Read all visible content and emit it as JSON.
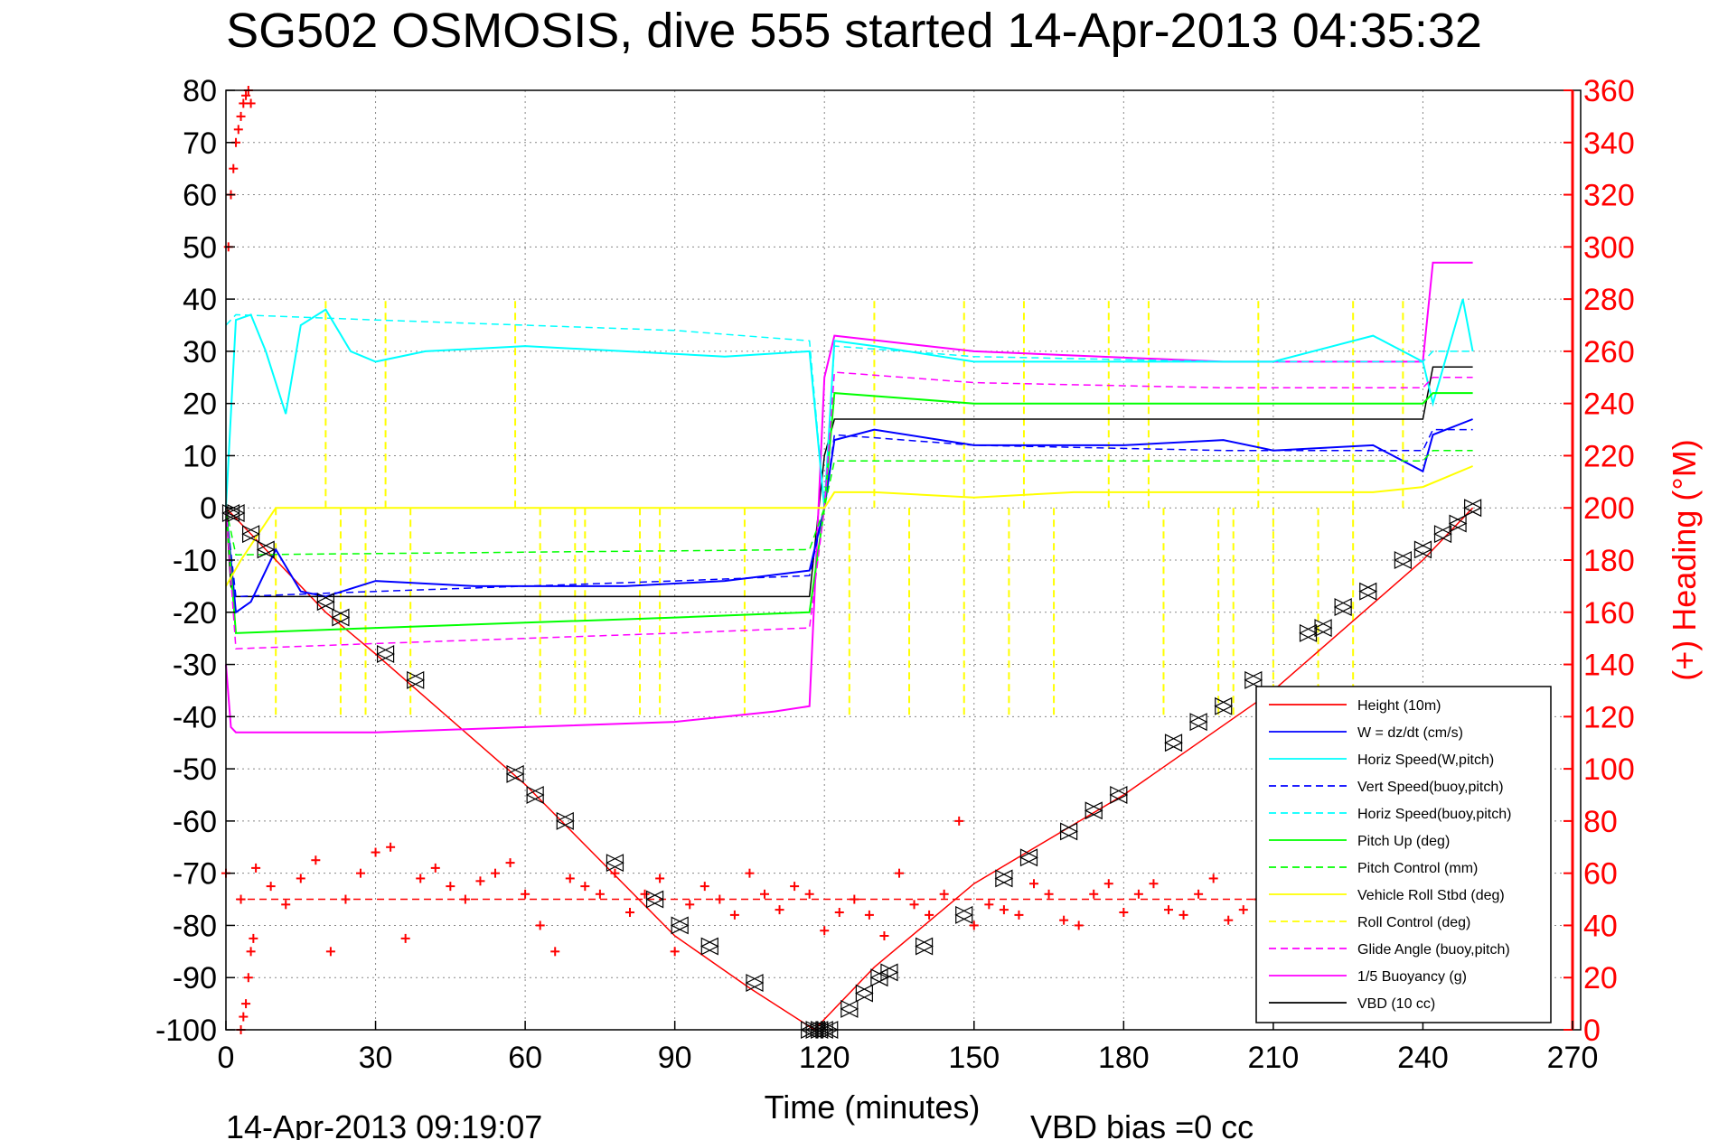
{
  "chart_data": {
    "type": "line",
    "title": "SG502 OSMOSIS, dive 555 started 14-Apr-2013 04:35:32",
    "xlabel": "Time (minutes)",
    "ylabel_right": "(+) Heading (°M)",
    "footer_left": "14-Apr-2013 09:19:07",
    "footer_right": "VBD bias =0 cc",
    "xlim": [
      0,
      270
    ],
    "ylim": [
      -100,
      80
    ],
    "ylim_right": [
      0,
      360
    ],
    "x_ticks": [
      0,
      30,
      60,
      90,
      120,
      150,
      180,
      210,
      240,
      270
    ],
    "y_ticks": [
      80,
      70,
      60,
      50,
      40,
      30,
      20,
      10,
      0,
      -10,
      -20,
      -30,
      -40,
      -50,
      -60,
      -70,
      -80,
      -90,
      -100
    ],
    "y_ticks_right": [
      360,
      340,
      320,
      300,
      280,
      260,
      240,
      220,
      200,
      180,
      160,
      140,
      120,
      100,
      80,
      60,
      40,
      20,
      0
    ],
    "grid": true,
    "legend_position": "bottom-right",
    "colors": {
      "height": "#ff0000",
      "w": "#0000ff",
      "hspd": "#00ffff",
      "pitch": "#00ff00",
      "roll": "#ffff00",
      "glide": "#ff00ff",
      "buoy": "#ff00ff",
      "vbd": "#000000",
      "heading": "#ff0000",
      "axis_right": "#ff0000"
    },
    "legend": [
      {
        "name": "Height (10m)",
        "color": "#ff0000",
        "dash": false
      },
      {
        "name": "W = dz/dt (cm/s)",
        "color": "#0000ff",
        "dash": false
      },
      {
        "name": "Horiz Speed(W,pitch)",
        "color": "#00ffff",
        "dash": false
      },
      {
        "name": "Vert Speed(buoy,pitch)",
        "color": "#0000ff",
        "dash": true
      },
      {
        "name": "Horiz Speed(buoy,pitch)",
        "color": "#00ffff",
        "dash": true
      },
      {
        "name": "Pitch Up (deg)",
        "color": "#00ff00",
        "dash": false
      },
      {
        "name": "Pitch Control (mm)",
        "color": "#00ff00",
        "dash": true
      },
      {
        "name": "Vehicle Roll Stbd (deg)",
        "color": "#ffff00",
        "dash": false
      },
      {
        "name": "Roll Control (deg)",
        "color": "#ffff00",
        "dash": true
      },
      {
        "name": "Glide Angle (buoy,pitch)",
        "color": "#ff00ff",
        "dash": true
      },
      {
        "name": "1/5 Buoyancy (g)",
        "color": "#ff00ff",
        "dash": false
      },
      {
        "name": "VBD (10 cc)",
        "color": "#000000",
        "dash": false
      }
    ],
    "series": [
      {
        "key": "height",
        "x": [
          0,
          2,
          5,
          10,
          20,
          30,
          60,
          90,
          105,
          118,
          120,
          130,
          150,
          180,
          210,
          240,
          250
        ],
        "y": [
          0,
          -2,
          -5,
          -10,
          -20,
          -28,
          -53,
          -82,
          -92,
          -100,
          -98,
          -88,
          -72,
          -55,
          -35,
          -10,
          0
        ]
      },
      {
        "key": "vbd",
        "x": [
          0,
          1,
          2,
          20,
          60,
          100,
          117,
          120,
          122,
          160,
          200,
          240,
          242,
          250
        ],
        "y": [
          0,
          -15,
          -17,
          -17,
          -17,
          -17,
          -17,
          10,
          17,
          17,
          17,
          17,
          27,
          27
        ]
      },
      {
        "key": "buoy",
        "x": [
          0,
          1,
          2,
          30,
          60,
          90,
          110,
          117,
          120,
          122,
          150,
          200,
          240,
          242,
          250
        ],
        "y": [
          -30,
          -42,
          -43,
          -43,
          -42,
          -41,
          -39,
          -38,
          25,
          33,
          30,
          28,
          28,
          47,
          47
        ]
      },
      {
        "key": "hspd_buoy",
        "x": [
          0,
          2,
          30,
          60,
          90,
          117,
          120,
          122,
          150,
          200,
          240,
          242,
          250
        ],
        "y": [
          35,
          37,
          36,
          35,
          34,
          32,
          0,
          31,
          29,
          28,
          28,
          30,
          30
        ]
      },
      {
        "key": "hspd_w",
        "x": [
          0,
          2,
          5,
          8,
          12,
          15,
          20,
          25,
          30,
          40,
          60,
          80,
          100,
          117,
          120,
          122,
          130,
          150,
          180,
          210,
          230,
          240,
          242,
          248,
          250
        ],
        "y": [
          0,
          36,
          37,
          30,
          18,
          35,
          38,
          30,
          28,
          30,
          31,
          30,
          29,
          30,
          0,
          32,
          31,
          28,
          28,
          28,
          33,
          28,
          20,
          40,
          30
        ]
      },
      {
        "key": "w",
        "x": [
          0,
          2,
          5,
          10,
          15,
          20,
          30,
          50,
          80,
          100,
          117,
          120,
          122,
          130,
          150,
          180,
          200,
          210,
          230,
          240,
          242,
          250
        ],
        "y": [
          0,
          -20,
          -18,
          -8,
          -16,
          -17,
          -14,
          -15,
          -15,
          -14,
          -12,
          0,
          13,
          15,
          12,
          12,
          13,
          11,
          12,
          7,
          14,
          17
        ]
      },
      {
        "key": "w_buoy",
        "x": [
          0,
          2,
          30,
          60,
          90,
          117,
          120,
          122,
          150,
          200,
          240,
          242,
          250
        ],
        "y": [
          0,
          -17,
          -16,
          -15,
          -14,
          -13,
          0,
          14,
          12,
          11,
          11,
          15,
          15
        ]
      },
      {
        "key": "pitch",
        "x": [
          0,
          2,
          30,
          60,
          90,
          117,
          120,
          122,
          150,
          200,
          240,
          242,
          250
        ],
        "y": [
          0,
          -24,
          -23,
          -22,
          -21,
          -20,
          0,
          22,
          20,
          20,
          20,
          22,
          22
        ]
      },
      {
        "key": "pitch_ctrl",
        "x": [
          0,
          2,
          117,
          120,
          122,
          240,
          242,
          250
        ],
        "y": [
          0,
          -9,
          -8,
          0,
          9,
          9,
          11,
          11
        ]
      },
      {
        "key": "glide",
        "x": [
          0,
          2,
          30,
          60,
          90,
          117,
          120,
          122,
          150,
          200,
          240,
          242,
          250
        ],
        "y": [
          0,
          -27,
          -26,
          -25,
          -24,
          -23,
          0,
          26,
          24,
          23,
          23,
          25,
          25
        ]
      },
      {
        "key": "roll",
        "x": [
          0,
          3,
          10,
          20,
          40,
          60,
          80,
          100,
          117,
          120,
          122,
          130,
          150,
          170,
          200,
          230,
          240,
          245,
          250
        ],
        "y": [
          -15,
          -10,
          0,
          0,
          0,
          0,
          0,
          0,
          0,
          0,
          3,
          3,
          2,
          3,
          3,
          3,
          4,
          6,
          8
        ]
      }
    ],
    "roll_spikes_down": [
      10,
      23,
      28,
      37,
      63,
      70,
      72,
      83,
      87,
      104,
      125,
      137,
      148,
      157,
      166,
      188,
      199,
      202,
      210,
      219,
      226
    ],
    "roll_spikes_up": [
      20,
      32,
      58,
      130,
      148,
      160,
      177,
      185,
      207,
      226,
      236
    ],
    "heading_median_deg": 50,
    "heading": {
      "x": [
        0,
        3,
        6,
        9,
        12,
        15,
        18,
        21,
        24,
        27,
        30,
        33,
        36,
        39,
        42,
        45,
        48,
        51,
        54,
        57,
        60,
        63,
        66,
        69,
        72,
        75,
        78,
        81,
        84,
        87,
        90,
        93,
        96,
        99,
        102,
        105,
        108,
        111,
        114,
        117,
        120,
        123,
        126,
        129,
        132,
        135,
        138,
        141,
        144,
        147,
        150,
        153,
        156,
        159,
        162,
        165,
        168,
        171,
        174,
        177,
        180,
        183,
        186,
        189,
        192,
        195,
        198,
        201,
        204,
        207,
        210,
        213,
        216,
        219,
        222,
        225,
        228,
        231,
        234,
        237,
        240,
        243,
        246,
        249
      ],
      "y": [
        60,
        50,
        62,
        55,
        48,
        58,
        65,
        30,
        50,
        60,
        68,
        70,
        35,
        58,
        62,
        55,
        50,
        57,
        60,
        64,
        52,
        40,
        30,
        58,
        55,
        52,
        60,
        45,
        52,
        58,
        30,
        48,
        55,
        50,
        44,
        60,
        52,
        46,
        55,
        52,
        38,
        45,
        50,
        44,
        36,
        60,
        48,
        44,
        52,
        80,
        40,
        48,
        46,
        44,
        56,
        52,
        42,
        40,
        52,
        56,
        45,
        52,
        56,
        46,
        44,
        52,
        58,
        42,
        46,
        50,
        36,
        44,
        52,
        40,
        50,
        60,
        50,
        44,
        38,
        44,
        60,
        50,
        48,
        52
      ]
    },
    "heading_start": {
      "x": [
        0.5,
        1.0,
        1.5,
        2.0,
        2.5,
        3.0,
        3.5,
        4.0,
        4.5,
        5.0
      ],
      "y": [
        300,
        320,
        330,
        340,
        345,
        350,
        355,
        358,
        360,
        355
      ]
    },
    "heading_start_low": {
      "x": [
        3.0,
        3.5,
        4.0,
        4.5,
        5.0,
        5.5
      ],
      "y": [
        0,
        5,
        10,
        20,
        30,
        35
      ]
    },
    "markers": {
      "x": [
        1,
        2,
        5,
        8,
        20,
        23,
        32,
        38,
        58,
        62,
        68,
        78,
        86,
        91,
        97,
        106,
        117,
        118,
        119,
        120,
        121,
        125,
        128,
        131,
        133,
        140,
        148,
        156,
        161,
        169,
        174,
        179,
        190,
        195,
        200,
        206,
        217,
        220,
        224,
        229,
        236,
        240,
        244,
        247,
        250
      ],
      "y": [
        -1,
        -1,
        -5,
        -8,
        -18,
        -21,
        -28,
        -33,
        -51,
        -55,
        -60,
        -68,
        -75,
        -80,
        -84,
        -91,
        -100,
        -100,
        -100,
        -100,
        -100,
        -96,
        -93,
        -90,
        -89,
        -84,
        -78,
        -71,
        -67,
        -62,
        -58,
        -55,
        -45,
        -41,
        -38,
        -33,
        -24,
        -23,
        -19,
        -16,
        -10,
        -8,
        -5,
        -3,
        0
      ]
    }
  }
}
